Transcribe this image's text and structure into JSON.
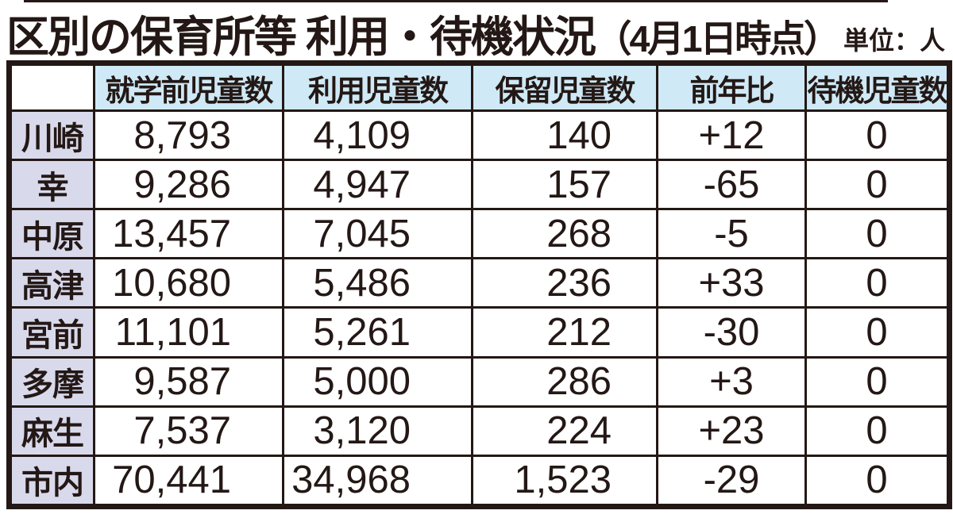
{
  "title": {
    "main": "区別の保育所等 利用・待機状況",
    "paren": "（4月1日時点）",
    "unit": "単位：人"
  },
  "chart_data": {
    "type": "table",
    "title": "区別の保育所等 利用・待機状況（4月1日時点）",
    "unit_label": "単位：人",
    "columns": [
      "",
      "就学前児童数",
      "利用児童数",
      "保留児童数",
      "前年比",
      "待機児童数"
    ],
    "rows": [
      [
        "川崎",
        "8,793",
        "4,109",
        "140",
        "+12",
        "0"
      ],
      [
        "幸",
        "9,286",
        "4,947",
        "157",
        "-65",
        "0"
      ],
      [
        "中原",
        "13,457",
        "7,045",
        "268",
        "-5",
        "0"
      ],
      [
        "高津",
        "10,680",
        "5,486",
        "236",
        "+33",
        "0"
      ],
      [
        "宮前",
        "11,101",
        "5,261",
        "212",
        "-30",
        "0"
      ],
      [
        "多摩",
        "9,587",
        "5,000",
        "286",
        "+3",
        "0"
      ],
      [
        "麻生",
        "7,537",
        "3,120",
        "224",
        "+23",
        "0"
      ],
      [
        "市内",
        "70,441",
        "34,968",
        "1,523",
        "-29",
        "0"
      ]
    ]
  },
  "colors": {
    "ink": "#231815",
    "header_bg": "#cfe9f6",
    "ward_bg": "#d9d9ec"
  }
}
